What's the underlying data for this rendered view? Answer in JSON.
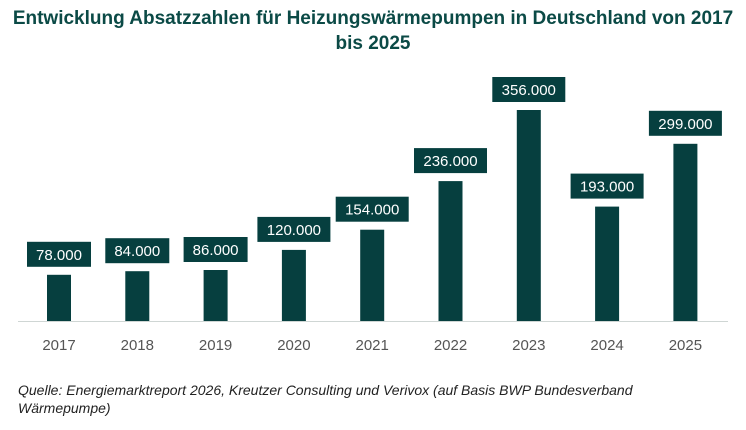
{
  "chart_data": {
    "type": "bar",
    "title": "Entwicklung Absatzzahlen für Heizungswärmepumpen in Deutschland von 2017 bis 2025",
    "categories": [
      "2017",
      "2018",
      "2019",
      "2020",
      "2021",
      "2022",
      "2023",
      "2024",
      "2025"
    ],
    "values": [
      78000,
      84000,
      86000,
      120000,
      154000,
      236000,
      356000,
      193000,
      299000
    ],
    "data_labels": [
      "78.000",
      "84.000",
      "86.000",
      "120.000",
      "154.000",
      "236.000",
      "356.000",
      "193.000",
      "299.000"
    ],
    "xlabel": "",
    "ylabel": "",
    "ylim": [
      0,
      356000
    ],
    "grid": false,
    "legend": "none",
    "bar_color": "#063f3f",
    "label_bg_color": "#063f3f",
    "label_text_color": "#ffffff",
    "axis_color": "#cfd6d4",
    "tick_label_color": "#555555"
  },
  "source": "Quelle: Energiemarktreport 2026, Kreutzer Consulting und Verivox (auf Basis BWP Bundesverband Wärmepumpe)"
}
